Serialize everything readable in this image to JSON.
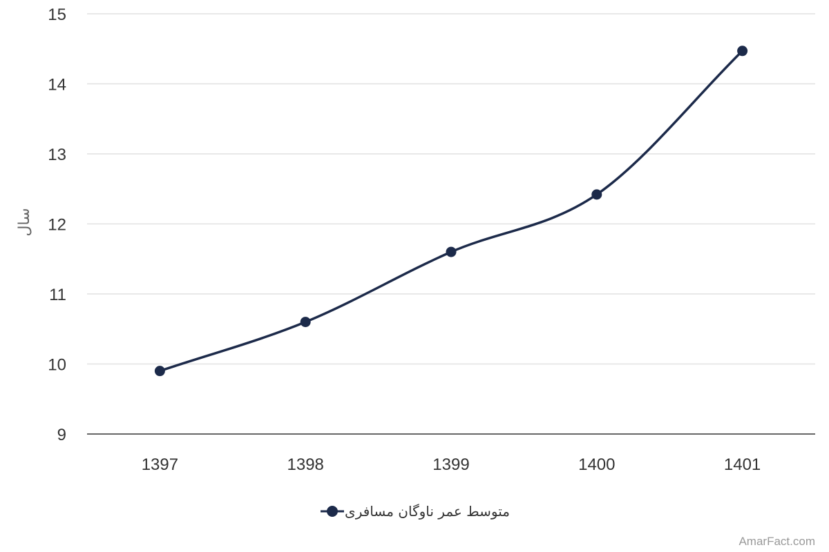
{
  "chart_data": {
    "type": "line",
    "categories": [
      "1397",
      "1398",
      "1399",
      "1400",
      "1401"
    ],
    "series": [
      {
        "name": "متوسط عمر ناوگان مسافری",
        "values": [
          9.9,
          10.6,
          11.6,
          12.42,
          14.47
        ],
        "color": "#1c2a4a"
      }
    ],
    "xlabel": "",
    "ylabel": "سال",
    "ylim": [
      9,
      15
    ],
    "yticks": [
      "9",
      "10",
      "11",
      "12",
      "13",
      "14",
      "15"
    ],
    "grid": true,
    "smooth": true,
    "legend_position": "bottom-center"
  },
  "credit": "AmarFact.com"
}
